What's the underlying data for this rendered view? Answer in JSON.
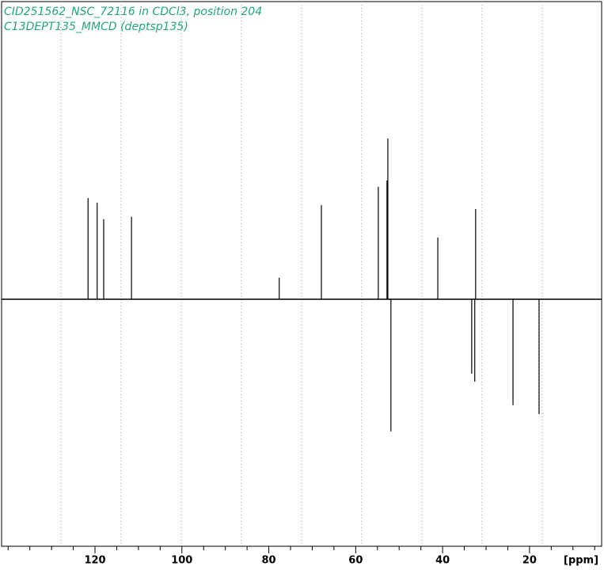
{
  "chart_data": {
    "type": "stem",
    "title": "CID251562_NSC_72116 in CDCl3, position 204",
    "subtitle": "C13DEPT135_MMCD (deptsp135)",
    "x_label": "[ppm]",
    "x": [
      121.6,
      119.5,
      118.0,
      111.6,
      77.6,
      67.9,
      54.8,
      52.8,
      52.6,
      51.9,
      41.1,
      33.3,
      32.6,
      32.4,
      23.8,
      17.8
    ],
    "values": [
      34,
      32.4,
      26.9,
      27.7,
      7.2,
      31.6,
      37.8,
      39.9,
      54,
      -44.4,
      20.7,
      -25,
      -27.7,
      30.3,
      -35.6,
      -38.6
    ],
    "color": "#000000",
    "xlim": [
      141.5,
      3.4
    ],
    "ylim": [
      -83,
      100
    ],
    "xticks": [
      120,
      100,
      80,
      60,
      40,
      20
    ],
    "xminorticks": [
      140,
      135,
      130,
      125,
      115,
      110,
      105,
      95,
      90,
      85,
      75,
      70,
      65,
      55,
      50,
      45,
      35,
      30,
      25,
      15,
      10,
      5
    ]
  }
}
